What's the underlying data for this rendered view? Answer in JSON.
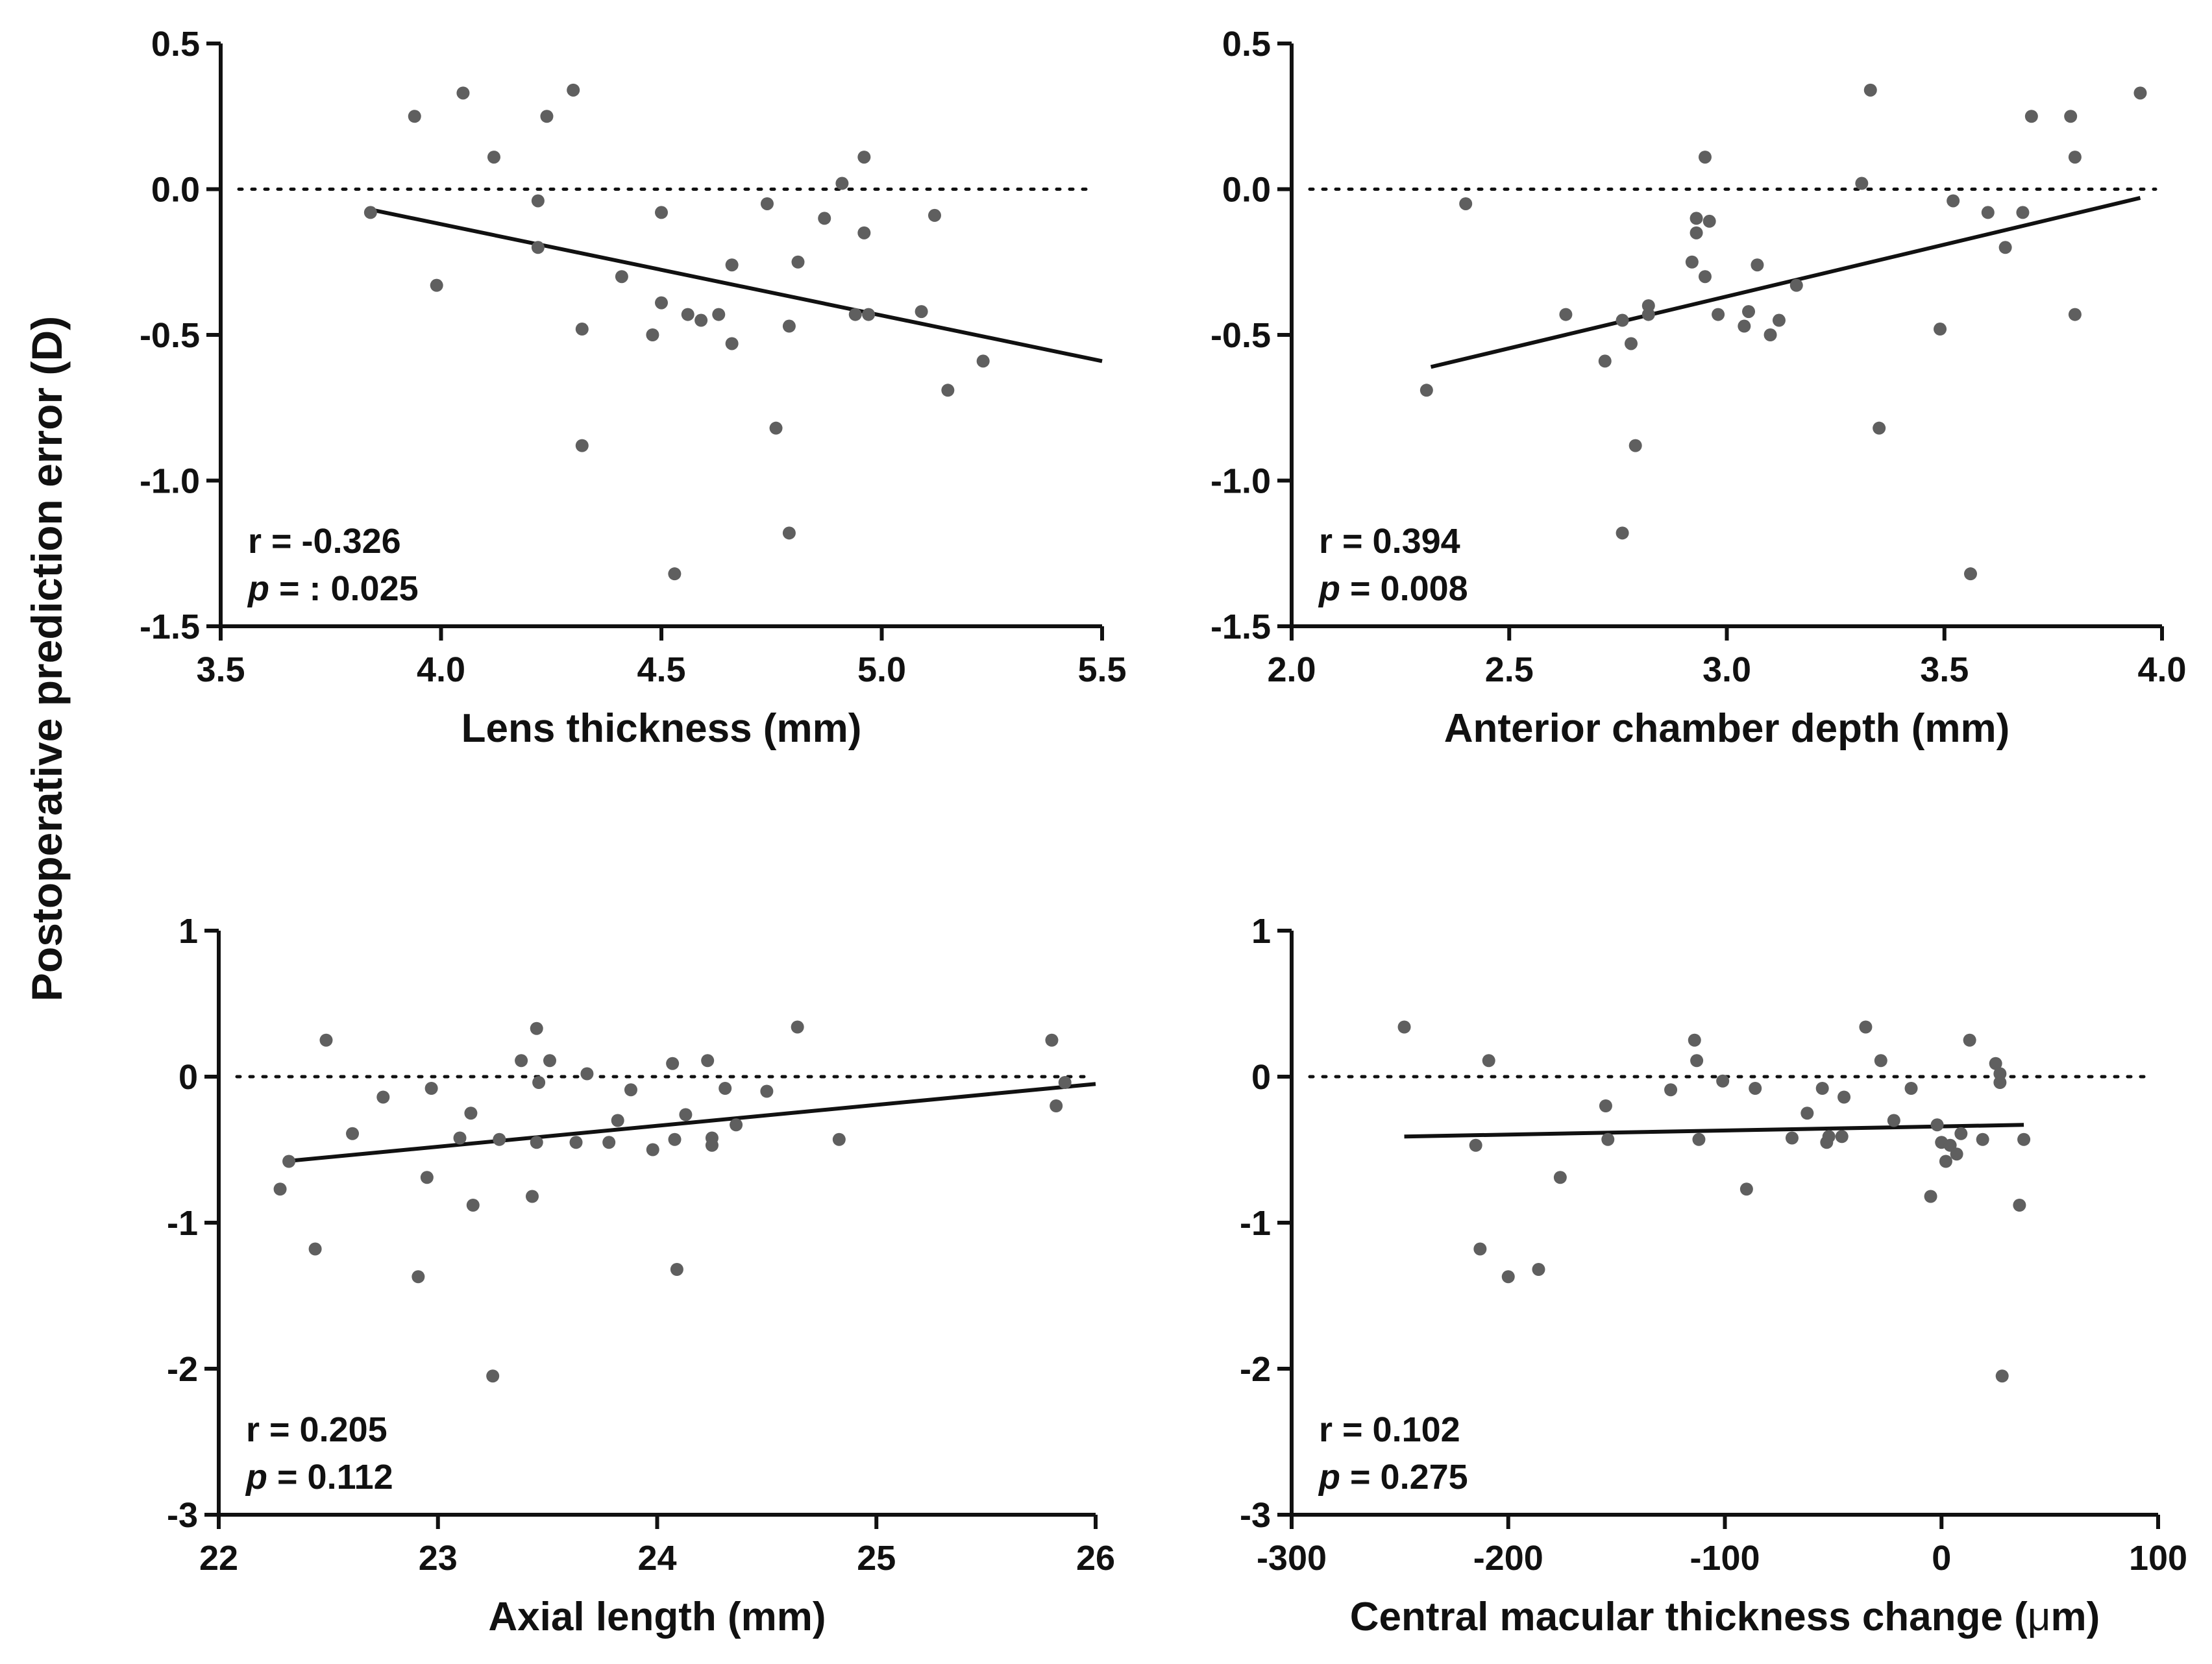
{
  "figure": {
    "ylabel": "Postoperative prediction error (D)"
  },
  "chart_data": [
    {
      "type": "scatter",
      "id": "lens",
      "xlabel": "Lens thickness (mm)",
      "ylabel": "Postoperative prediction error (D)",
      "xlim": [
        3.5,
        5.5
      ],
      "ylim": [
        -1.5,
        0.5
      ],
      "xticks": [
        "3.5",
        "4.0",
        "4.5",
        "5.0",
        "5.5"
      ],
      "yticks": [
        "0.5",
        "0.0",
        "-0.5",
        "-1.0",
        "-1.5"
      ],
      "reference_line_y": 0,
      "stat_r": "r = -0.326",
      "stat_p_label": "p",
      "stat_p_value": " = : 0.025",
      "fit": {
        "x": [
          3.84,
          5.5
        ],
        "y": [
          -0.07,
          -0.59
        ]
      },
      "points": [
        [
          3.84,
          -0.08
        ],
        [
          3.94,
          0.25
        ],
        [
          3.99,
          -0.33
        ],
        [
          4.05,
          0.33
        ],
        [
          4.12,
          0.11
        ],
        [
          4.22,
          -0.04
        ],
        [
          4.22,
          -0.2
        ],
        [
          4.24,
          0.25
        ],
        [
          4.3,
          0.34
        ],
        [
          4.32,
          -0.48
        ],
        [
          4.32,
          -0.88
        ],
        [
          4.41,
          -0.3
        ],
        [
          4.48,
          -0.5
        ],
        [
          4.5,
          -0.08
        ],
        [
          4.5,
          -0.39
        ],
        [
          4.53,
          -1.32
        ],
        [
          4.56,
          -0.43
        ],
        [
          4.59,
          -0.45
        ],
        [
          4.63,
          -0.43
        ],
        [
          4.66,
          -0.26
        ],
        [
          4.66,
          -0.53
        ],
        [
          4.74,
          -0.05
        ],
        [
          4.76,
          -0.82
        ],
        [
          4.79,
          -0.47
        ],
        [
          4.79,
          -1.18
        ],
        [
          4.81,
          -0.25
        ],
        [
          4.87,
          -0.1
        ],
        [
          4.91,
          0.02
        ],
        [
          4.94,
          -0.43
        ],
        [
          4.96,
          0.11
        ],
        [
          4.96,
          -0.15
        ],
        [
          4.97,
          -0.43
        ],
        [
          5.09,
          -0.42
        ],
        [
          5.12,
          -0.09
        ],
        [
          5.15,
          -0.69
        ],
        [
          5.23,
          -0.59
        ]
      ]
    },
    {
      "type": "scatter",
      "id": "acd",
      "xlabel": "Anterior chamber depth (mm)",
      "ylabel": "Postoperative prediction error (D)",
      "xlim": [
        2.0,
        4.0
      ],
      "ylim": [
        -1.5,
        0.5
      ],
      "xticks": [
        "2.0",
        "2.5",
        "3.0",
        "3.5",
        "4.0"
      ],
      "yticks": [
        "0.5",
        "0.0",
        "-0.5",
        "-1.0",
        "-1.5"
      ],
      "reference_line_y": 0,
      "stat_r": "r = 0.394",
      "stat_p_label": "p",
      "stat_p_value": " = 0.008",
      "fit": {
        "x": [
          2.32,
          3.95
        ],
        "y": [
          -0.61,
          -0.03
        ]
      },
      "points": [
        [
          2.31,
          -0.69
        ],
        [
          2.4,
          -0.05
        ],
        [
          2.63,
          -0.43
        ],
        [
          2.72,
          -0.59
        ],
        [
          2.76,
          -0.45
        ],
        [
          2.76,
          -1.18
        ],
        [
          2.78,
          -0.53
        ],
        [
          2.79,
          -0.88
        ],
        [
          2.82,
          -0.4
        ],
        [
          2.82,
          -0.43
        ],
        [
          2.92,
          -0.25
        ],
        [
          2.93,
          -0.1
        ],
        [
          2.93,
          -0.15
        ],
        [
          2.95,
          -0.3
        ],
        [
          2.95,
          0.11
        ],
        [
          2.96,
          -0.11
        ],
        [
          2.98,
          -0.43
        ],
        [
          3.04,
          -0.47
        ],
        [
          3.05,
          -0.42
        ],
        [
          3.07,
          -0.26
        ],
        [
          3.1,
          -0.5
        ],
        [
          3.12,
          -0.45
        ],
        [
          3.16,
          -0.33
        ],
        [
          3.31,
          0.02
        ],
        [
          3.33,
          0.34
        ],
        [
          3.35,
          -0.82
        ],
        [
          3.49,
          -0.48
        ],
        [
          3.52,
          -0.04
        ],
        [
          3.56,
          -1.32
        ],
        [
          3.6,
          -0.08
        ],
        [
          3.64,
          -0.2
        ],
        [
          3.68,
          -0.08
        ],
        [
          3.7,
          0.25
        ],
        [
          3.79,
          0.25
        ],
        [
          3.8,
          0.11
        ],
        [
          3.8,
          -0.43
        ],
        [
          3.95,
          0.33
        ]
      ]
    },
    {
      "type": "scatter",
      "id": "axial",
      "xlabel": "Axial length (mm)",
      "ylabel": "Postoperative prediction error (D)",
      "xlim": [
        22,
        26
      ],
      "ylim": [
        -3,
        1
      ],
      "xticks": [
        "22",
        "23",
        "24",
        "25",
        "26"
      ],
      "yticks": [
        "1",
        "0",
        "-1",
        "-2",
        "-3"
      ],
      "reference_line_y": 0,
      "stat_r": "r = 0.205",
      "stat_p_label": "p",
      "stat_p_value": " = 0.112",
      "fit": {
        "x": [
          22.3,
          26.0
        ],
        "y": [
          -0.58,
          -0.05
        ]
      },
      "points": [
        [
          22.28,
          -0.77
        ],
        [
          22.32,
          -0.58
        ],
        [
          22.44,
          -1.18
        ],
        [
          22.49,
          0.25
        ],
        [
          22.61,
          -0.39
        ],
        [
          22.75,
          -0.14
        ],
        [
          22.91,
          -1.37
        ],
        [
          22.95,
          -0.69
        ],
        [
          22.97,
          -0.08
        ],
        [
          23.1,
          -0.42
        ],
        [
          23.15,
          -0.25
        ],
        [
          23.16,
          -0.88
        ],
        [
          23.25,
          -2.05
        ],
        [
          23.28,
          -0.43
        ],
        [
          23.38,
          0.11
        ],
        [
          23.43,
          -0.82
        ],
        [
          23.45,
          -0.45
        ],
        [
          23.45,
          0.33
        ],
        [
          23.46,
          -0.04
        ],
        [
          23.51,
          0.11
        ],
        [
          23.63,
          -0.45
        ],
        [
          23.68,
          0.02
        ],
        [
          23.78,
          -0.45
        ],
        [
          23.82,
          -0.3
        ],
        [
          23.88,
          -0.09
        ],
        [
          23.98,
          -0.5
        ],
        [
          24.07,
          0.09
        ],
        [
          24.08,
          -0.43
        ],
        [
          24.09,
          -1.32
        ],
        [
          24.13,
          -0.26
        ],
        [
          24.23,
          0.11
        ],
        [
          24.25,
          -0.42
        ],
        [
          24.25,
          -0.47
        ],
        [
          24.31,
          -0.08
        ],
        [
          24.36,
          -0.33
        ],
        [
          24.5,
          -0.1
        ],
        [
          24.64,
          0.34
        ],
        [
          24.83,
          -0.43
        ],
        [
          25.8,
          0.25
        ],
        [
          25.82,
          -0.2
        ],
        [
          25.86,
          -0.04
        ]
      ]
    },
    {
      "type": "scatter",
      "id": "cmt",
      "xlabel": "Central macular thickness change (",
      "xlabel_mu": "μ",
      "xlabel_tail": "m)",
      "ylabel": "Postoperative prediction error (D)",
      "xlim": [
        -300,
        100
      ],
      "ylim": [
        -3,
        1
      ],
      "xticks": [
        "-300",
        "-200",
        "-100",
        "0",
        "100"
      ],
      "yticks": [
        "1",
        "0",
        "-1",
        "-2",
        "-3"
      ],
      "reference_line_y": 0,
      "stat_r": "r = 0.102",
      "stat_p_label": "p",
      "stat_p_value": " = 0.275",
      "fit": {
        "x": [
          -248,
          38
        ],
        "y": [
          -0.41,
          -0.33
        ]
      },
      "points": [
        [
          -248,
          0.34
        ],
        [
          -215,
          -0.47
        ],
        [
          -213,
          -1.18
        ],
        [
          -209,
          0.11
        ],
        [
          -200,
          -1.37
        ],
        [
          -186,
          -1.32
        ],
        [
          -176,
          -0.69
        ],
        [
          -155,
          -0.2
        ],
        [
          -154,
          -0.43
        ],
        [
          -125,
          -0.09
        ],
        [
          -114,
          0.25
        ],
        [
          -113,
          0.11
        ],
        [
          -112,
          -0.43
        ],
        [
          -101,
          -0.03
        ],
        [
          -90,
          -0.77
        ],
        [
          -86,
          -0.08
        ],
        [
          -69,
          -0.42
        ],
        [
          -62,
          -0.25
        ],
        [
          -55,
          -0.08
        ],
        [
          -53,
          -0.45
        ],
        [
          -52,
          -0.41
        ],
        [
          -46,
          -0.41
        ],
        [
          -45,
          -0.14
        ],
        [
          -35,
          0.34
        ],
        [
          -28,
          0.11
        ],
        [
          -22,
          -0.3
        ],
        [
          -14,
          -0.08
        ],
        [
          -5,
          -0.82
        ],
        [
          -2,
          -0.33
        ],
        [
          0,
          -0.45
        ],
        [
          2,
          -0.58
        ],
        [
          4,
          -0.47
        ],
        [
          7,
          -0.53
        ],
        [
          9,
          -0.39
        ],
        [
          13,
          0.25
        ],
        [
          19,
          -0.43
        ],
        [
          25,
          0.09
        ],
        [
          27,
          0.02
        ],
        [
          27,
          -0.04
        ],
        [
          28,
          -2.05
        ],
        [
          36,
          -0.88
        ],
        [
          38,
          -0.43
        ]
      ]
    }
  ]
}
